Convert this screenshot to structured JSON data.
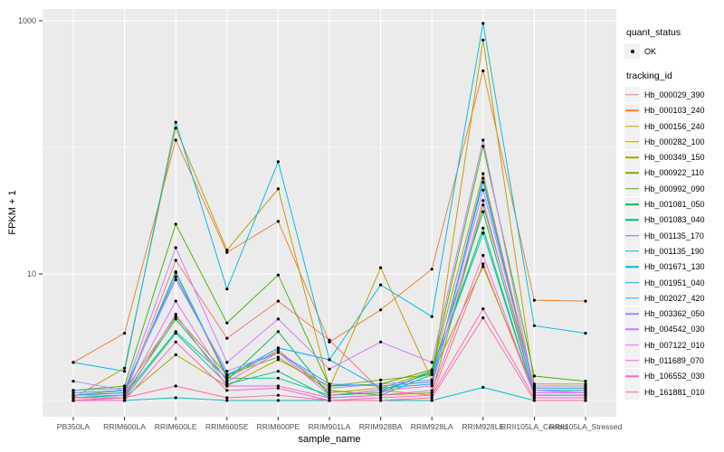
{
  "chart_data": {
    "type": "line",
    "xlabel": "sample_name",
    "ylabel": "FPKM + 1",
    "y_scale": "log10",
    "ylim": [
      0.75,
      1250
    ],
    "grid": true,
    "legend_position": "right",
    "y_ticks": [
      {
        "value": 1000,
        "label": "1000"
      },
      {
        "value": 10,
        "label": "10"
      }
    ],
    "y_grid_major": [
      1000,
      10
    ],
    "y_grid_minor": [
      100,
      1
    ],
    "categories": [
      "PB350LA",
      "RRIM600LA",
      "RRIM600LE",
      "RRIM600SE",
      "RRIM600PE",
      "RRIM901LA",
      "RRIM928BA",
      "RRIM928LA",
      "RRIM928LE",
      "RRII105LA_Control",
      "RRII105LA_Stressed"
    ],
    "series": [
      {
        "name": "Hb_000029_390",
        "color": "#F8766D",
        "values": [
          1.05,
          1.1,
          12.8,
          3.1,
          6.1,
          3.0,
          1.2,
          1.1,
          12,
          1.1,
          1.1
        ]
      },
      {
        "name": "Hb_000103_240",
        "color": "#EA8331",
        "values": [
          2.0,
          3.4,
          114,
          14.8,
          26,
          2.9,
          5.2,
          10.9,
          402,
          6.2,
          6.1
        ]
      },
      {
        "name": "Hb_000156_240",
        "color": "#D89000",
        "values": [
          1.1,
          1.15,
          10.2,
          1.5,
          2.5,
          1.15,
          1.25,
          1.7,
          62,
          1.25,
          1.25
        ]
      },
      {
        "name": "Hb_000282_100",
        "color": "#C09B00",
        "values": [
          1.05,
          1.8,
          142,
          15.4,
          47,
          1.25,
          11.2,
          1.45,
          705,
          1.35,
          1.35
        ]
      },
      {
        "name": "Hb_000349_150",
        "color": "#A3A500",
        "values": [
          1.0,
          1.05,
          2.3,
          1.3,
          2.1,
          1.3,
          1.45,
          1.6,
          11.4,
          1.2,
          1.2
        ]
      },
      {
        "name": "Hb_000922_110",
        "color": "#7CAE00",
        "values": [
          1.1,
          1.2,
          4.6,
          1.6,
          2.2,
          1.2,
          1.1,
          1.15,
          35,
          1.3,
          1.3
        ]
      },
      {
        "name": "Hb_000992_090",
        "color": "#39B600",
        "values": [
          1.2,
          1.3,
          24.7,
          4.1,
          9.8,
          1.3,
          1.35,
          1.75,
          102,
          1.56,
          1.42
        ]
      },
      {
        "name": "Hb_001081_050",
        "color": "#00BB4E",
        "values": [
          1.05,
          1.1,
          4.4,
          1.45,
          3.5,
          1.1,
          1.15,
          1.7,
          31,
          1.15,
          1.15
        ]
      },
      {
        "name": "Hb_001083_040",
        "color": "#00BF7D",
        "values": [
          1.0,
          1.05,
          3.4,
          1.35,
          1.7,
          1.05,
          1.1,
          1.6,
          23,
          1.1,
          1.1
        ]
      },
      {
        "name": "Hb_001135_170",
        "color": "#00C1A3",
        "values": [
          1.05,
          1.1,
          3.5,
          1.5,
          1.5,
          1.1,
          1.2,
          1.65,
          21,
          1.1,
          1.1
        ]
      },
      {
        "name": "Hb_001135_190",
        "color": "#00BFC4",
        "values": [
          1.0,
          1.0,
          1.05,
          1.0,
          1.0,
          1.0,
          1.0,
          1.0,
          1.27,
          1.0,
          1.0
        ]
      },
      {
        "name": "Hb_001671_130",
        "color": "#00BAE0",
        "values": [
          2.0,
          1.7,
          158,
          7.6,
          77,
          2.1,
          8.2,
          4.6,
          953,
          3.9,
          3.4
        ]
      },
      {
        "name": "Hb_001951_040",
        "color": "#00B0F6",
        "values": [
          1.1,
          1.15,
          10.4,
          1.55,
          2.6,
          2.1,
          1.25,
          1.35,
          57,
          1.2,
          1.2
        ]
      },
      {
        "name": "Hb_002027_420",
        "color": "#35A2FF",
        "values": [
          1.15,
          1.2,
          9.5,
          1.6,
          2.4,
          1.35,
          1.3,
          1.4,
          53,
          1.25,
          1.25
        ]
      },
      {
        "name": "Hb_003362_050",
        "color": "#9590FF",
        "values": [
          1.2,
          1.25,
          9.0,
          1.7,
          2.4,
          1.25,
          1.35,
          1.45,
          46,
          1.3,
          1.3
        ]
      },
      {
        "name": "Hb_004542_030",
        "color": "#C77CFF",
        "values": [
          1.42,
          1.2,
          16.1,
          2.0,
          4.4,
          1.77,
          2.9,
          2.0,
          114,
          1.2,
          1.15
        ]
      },
      {
        "name": "Hb_007122_010",
        "color": "#E76BF3",
        "values": [
          1.1,
          1.1,
          6.1,
          1.4,
          2.4,
          1.1,
          1.2,
          1.3,
          38,
          1.15,
          1.15
        ]
      },
      {
        "name": "Hb_011689_070",
        "color": "#FA62DB",
        "values": [
          1.05,
          1.05,
          4.8,
          1.3,
          1.3,
          1.05,
          1.1,
          1.2,
          14,
          1.1,
          1.1
        ]
      },
      {
        "name": "Hb_106552_030",
        "color": "#FF62BC",
        "values": [
          1.0,
          1.0,
          2.9,
          1.2,
          1.25,
          1.0,
          1.05,
          1.1,
          5.3,
          1.05,
          1.05
        ]
      },
      {
        "name": "Hb_161881_010",
        "color": "#FF6A98",
        "values": [
          1.0,
          1.05,
          1.3,
          1.05,
          1.1,
          1.0,
          1.0,
          1.05,
          4.5,
          1.0,
          1.0
        ]
      }
    ]
  },
  "legend": {
    "quant_status_title": "quant_status",
    "quant_status_value": "OK",
    "tracking_id_title": "tracking_id"
  },
  "colors": {
    "panel_bg": "#EBEBEB",
    "grid": "#FFFFFF",
    "axis_text": "#4D4D4D",
    "tick": "#333333",
    "point": "#000000",
    "legend_key_bg": "#F2F2F2"
  }
}
